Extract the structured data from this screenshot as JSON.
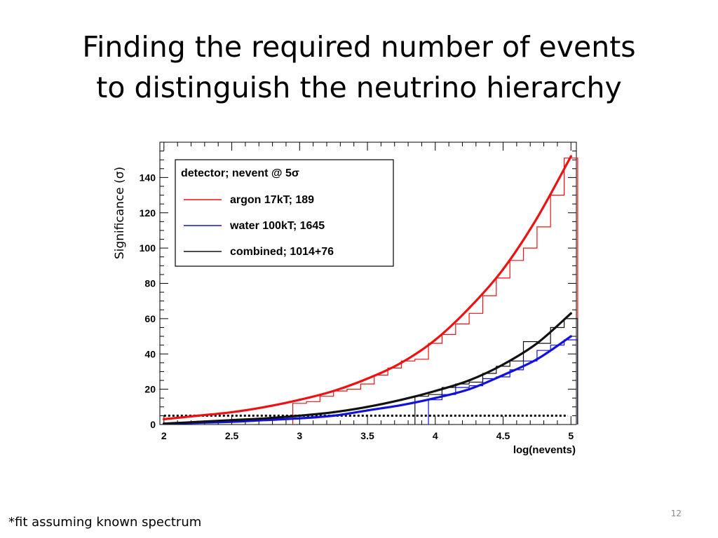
{
  "slide": {
    "title_line1": "Finding the required number of events",
    "title_line2": "to distinguish the neutrino hierarchy",
    "footnote": "*fit assuming known spectrum",
    "page_number": "12"
  },
  "chart_data": {
    "type": "line",
    "xlabel": "log(nevents)",
    "ylabel": "Significance (σ)",
    "xlim": [
      1.97,
      5.04
    ],
    "ylim": [
      0,
      160
    ],
    "x_ticks": [
      "2",
      "2.5",
      "3",
      "3.5",
      "4",
      "4.5",
      "5"
    ],
    "y_ticks": [
      "0",
      "20",
      "40",
      "60",
      "80",
      "100",
      "120",
      "140"
    ],
    "threshold": 5,
    "legend": {
      "title": "detector; nevent @ 5σ",
      "placement": "top-left"
    },
    "series": [
      {
        "name": "argon 17kT; 189",
        "color": "#ee1111",
        "x": [
          2.0,
          2.25,
          2.5,
          2.75,
          3.0,
          3.25,
          3.5,
          3.75,
          4.0,
          4.25,
          4.5,
          4.75,
          5.0
        ],
        "fit": [
          3,
          5,
          7,
          10,
          14,
          19,
          26,
          35,
          48,
          66,
          88,
          117,
          152
        ],
        "hist_x": [
          2.95,
          3.05,
          3.15,
          3.25,
          3.35,
          3.45,
          3.55,
          3.65,
          3.75,
          3.85,
          3.95,
          4.05,
          4.15,
          4.25,
          4.35,
          4.45,
          4.55,
          4.65,
          4.75,
          4.85,
          4.95,
          5.05
        ],
        "hist_y": [
          12,
          13,
          16,
          19,
          20,
          23,
          28,
          32,
          36,
          37,
          46,
          51,
          57,
          63,
          73,
          83,
          93,
          100,
          112,
          130,
          151
        ]
      },
      {
        "name": "water 100kT; 1645",
        "color": "#1111dd",
        "x": [
          2.0,
          2.25,
          2.5,
          2.75,
          3.0,
          3.25,
          3.5,
          3.75,
          4.0,
          4.25,
          4.5,
          4.75,
          5.0
        ],
        "fit": [
          0.5,
          1,
          1.5,
          2.5,
          3.5,
          5,
          8,
          11,
          15,
          20,
          28,
          37,
          50
        ],
        "hist_x": [
          3.95,
          4.05,
          4.15,
          4.25,
          4.35,
          4.45,
          4.55,
          4.65,
          4.75,
          4.85,
          4.95,
          5.05
        ],
        "hist_y": [
          14,
          17,
          21,
          22,
          26,
          27,
          31,
          36,
          42,
          45,
          48
        ]
      },
      {
        "name": "combined; 1014+76",
        "color": "#111111",
        "x": [
          2.0,
          2.25,
          2.5,
          2.75,
          3.0,
          3.25,
          3.5,
          3.75,
          4.0,
          4.25,
          4.5,
          4.75,
          5.0
        ],
        "fit": [
          0.5,
          1.5,
          2.5,
          3.5,
          5,
          7,
          10,
          14,
          19,
          25,
          34,
          46,
          63
        ],
        "hist_x": [
          3.85,
          3.95,
          4.05,
          4.15,
          4.25,
          4.35,
          4.45,
          4.55,
          4.65,
          4.75,
          4.85,
          4.95,
          5.05
        ],
        "hist_y": [
          16,
          17,
          21,
          23,
          24,
          29,
          33,
          36,
          47,
          46,
          55,
          60
        ]
      }
    ]
  }
}
